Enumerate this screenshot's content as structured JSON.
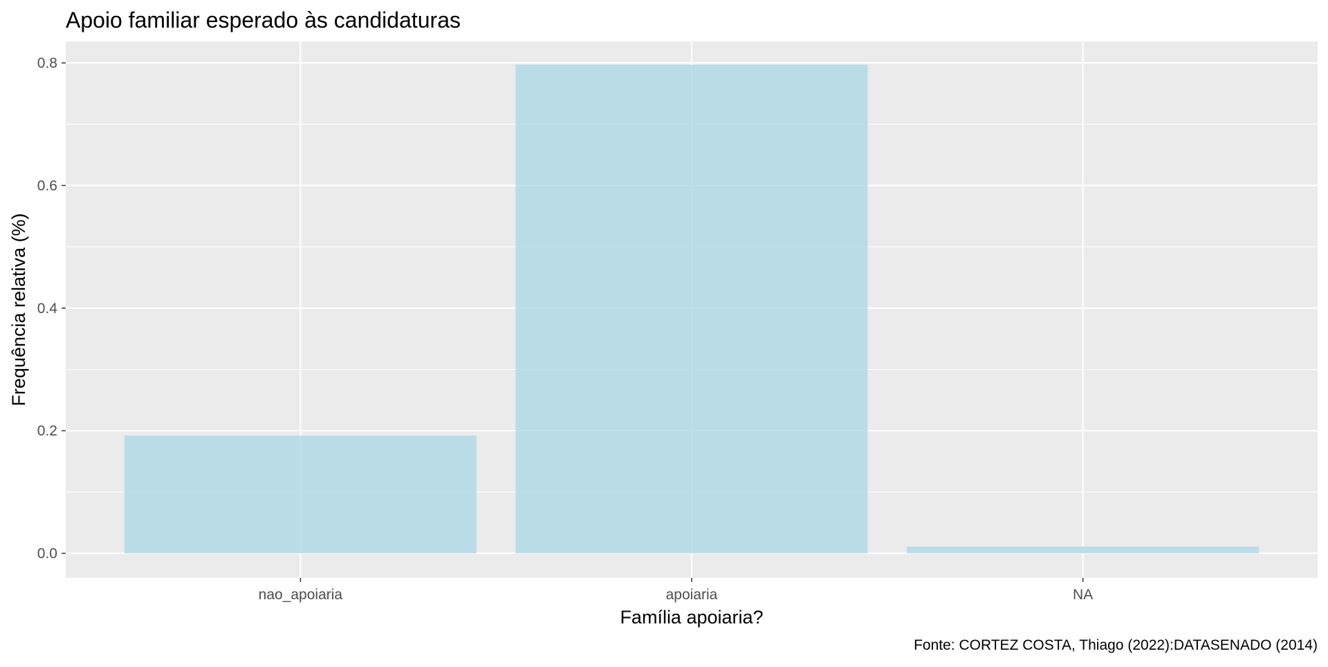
{
  "chart_data": {
    "type": "bar",
    "title": "Apoio familiar esperado às candidaturas",
    "xlabel": "Família apoiaria?",
    "ylabel": "Frequência relativa (%)",
    "caption": "Fonte: CORTEZ COSTA, Thiago (2022):DATASENADO (2014)",
    "categories": [
      "nao_apoiaria",
      "apoiaria",
      "NA"
    ],
    "values": [
      0.192,
      0.797,
      0.011
    ],
    "ylim": [
      -0.04,
      0.835
    ],
    "yticks": [
      0.0,
      0.2,
      0.4,
      0.6,
      0.8
    ],
    "ytick_labels": [
      "0.0",
      "0.2",
      "0.4",
      "0.6",
      "0.8"
    ],
    "grid": true,
    "colors": {
      "bar": "#add8e6",
      "panel": "#ebebeb",
      "grid": "#ffffff",
      "tick": "#333333"
    }
  }
}
